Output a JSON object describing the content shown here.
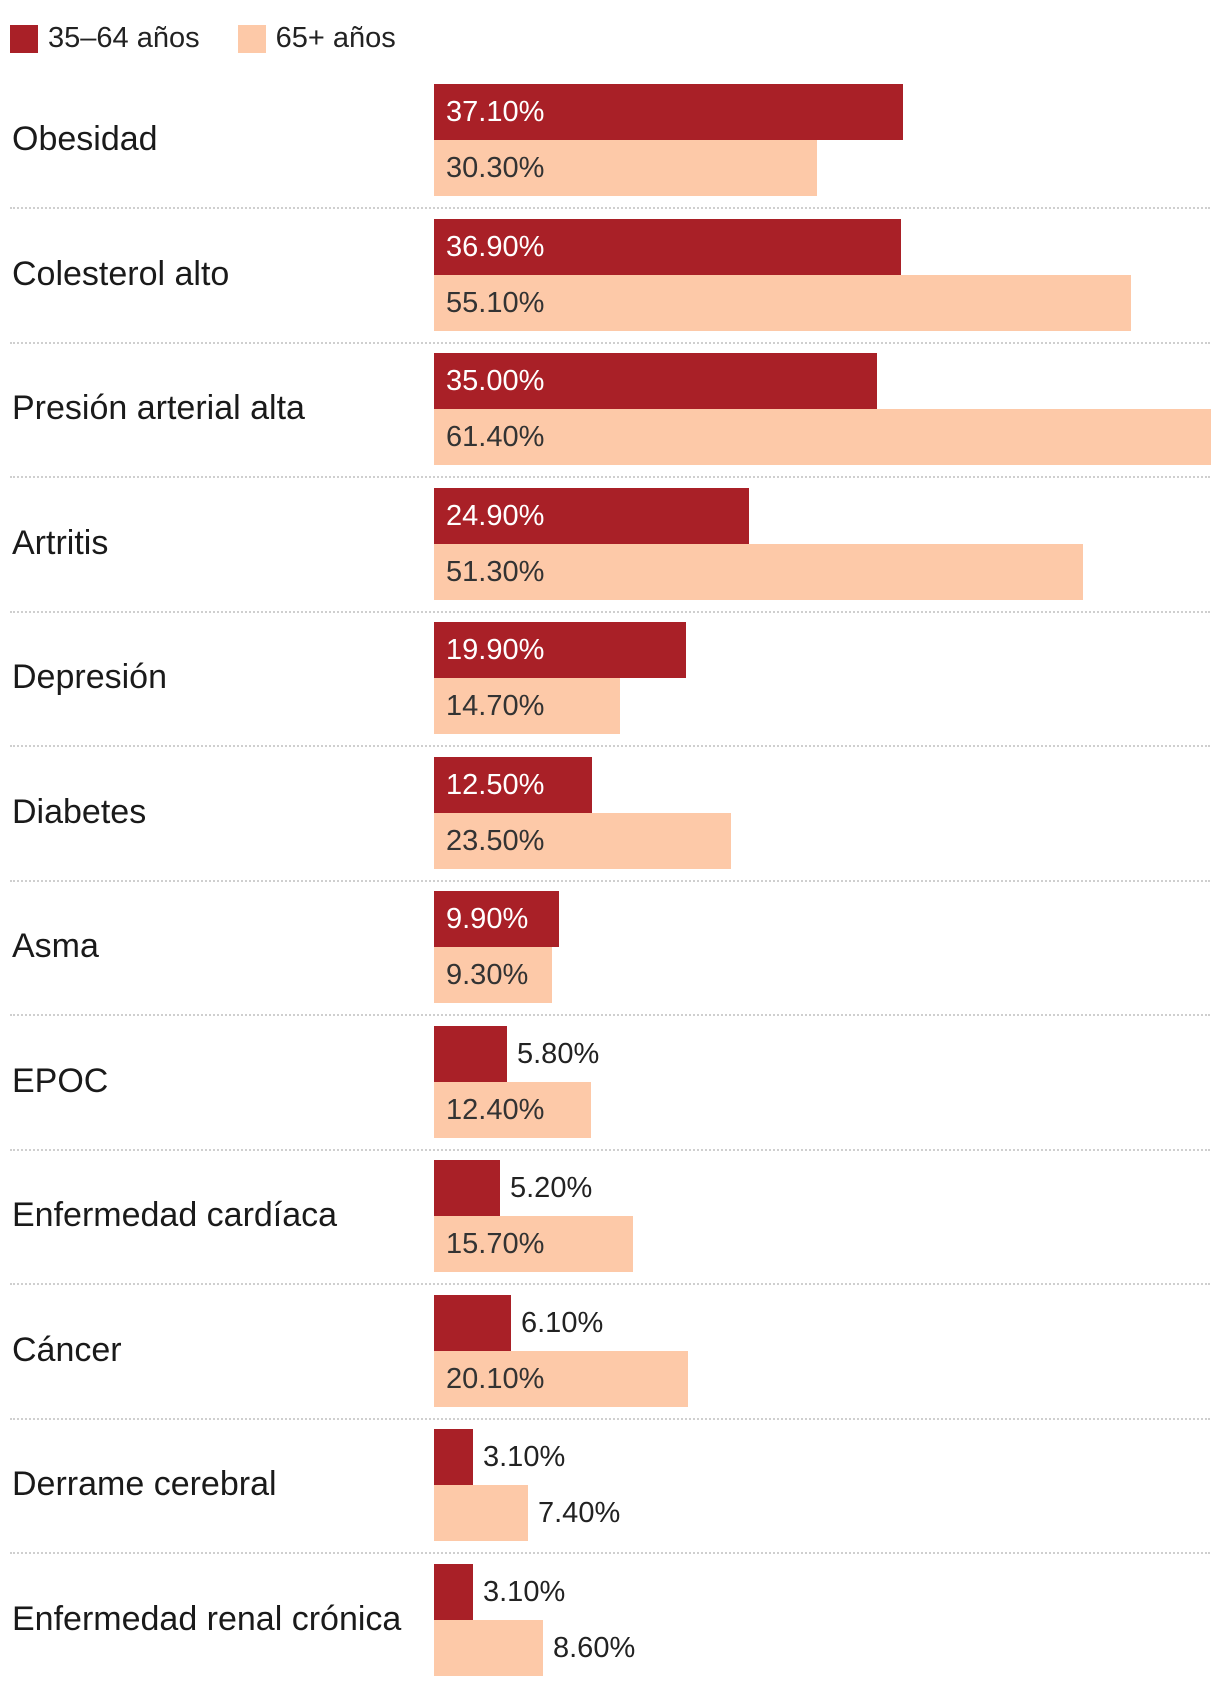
{
  "chart_data": {
    "type": "bar",
    "orientation": "horizontal",
    "title": "",
    "xlabel": "",
    "ylabel": "",
    "xlim": [
      0,
      61.4
    ],
    "categories": [
      "Obesidad",
      "Colesterol alto",
      "Presión arterial alta",
      "Artritis",
      "Depresión",
      "Diabetes",
      "Asma",
      "EPOC",
      "Enfermedad cardíaca",
      "Cáncer",
      "Derrame cerebral",
      "Enfermedad renal crónica"
    ],
    "series": [
      {
        "name": "35–64 años",
        "color": "#a92027",
        "values": [
          37.1,
          36.9,
          35.0,
          24.9,
          19.9,
          12.5,
          9.9,
          5.8,
          5.2,
          6.1,
          3.1,
          3.1
        ],
        "labels": [
          "37.10%",
          "36.90%",
          "35.00%",
          "24.90%",
          "19.90%",
          "12.50%",
          "9.90%",
          "5.80%",
          "5.20%",
          "6.10%",
          "3.10%",
          "3.10%"
        ]
      },
      {
        "name": "65+ años",
        "color": "#fdc9a8",
        "values": [
          30.3,
          55.1,
          61.4,
          51.3,
          14.7,
          23.5,
          9.3,
          12.4,
          15.7,
          20.1,
          7.4,
          8.6
        ],
        "labels": [
          "30.30%",
          "55.10%",
          "61.40%",
          "51.30%",
          "14.70%",
          "23.50%",
          "9.30%",
          "12.40%",
          "15.70%",
          "20.10%",
          "7.40%",
          "8.60%"
        ]
      }
    ],
    "legend_position": "top-left",
    "grid": false
  }
}
